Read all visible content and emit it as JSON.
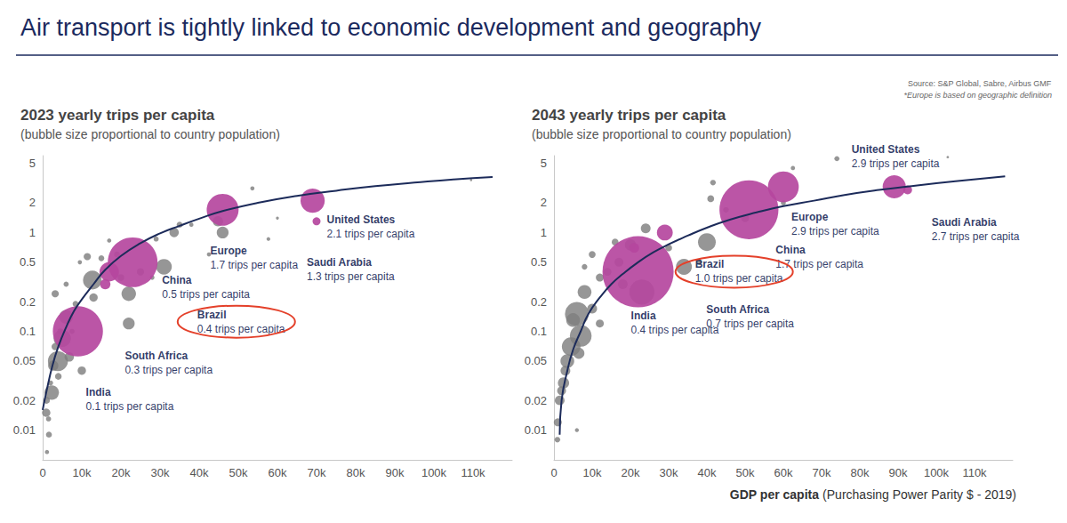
{
  "title": "Air transport is tightly linked to economic development and geography",
  "source": "Source: S&P Global, Sabre, Airbus GMF",
  "note": "*Europe is based on geographic definition",
  "chart_data": [
    {
      "type": "scatter",
      "title": "2023 yearly trips per capita",
      "subtitle": "(bubble size proportional to country population)",
      "log": "y",
      "grid": false,
      "xlim": [
        0,
        120000
      ],
      "xticks": [
        0,
        {
          "value": 10000,
          "label": "10k"
        },
        {
          "value": 20000,
          "label": "20k"
        },
        {
          "value": 30000,
          "label": "30k"
        },
        {
          "value": 40000,
          "label": "40k"
        },
        {
          "value": 50000,
          "label": "50k"
        },
        {
          "value": 60000,
          "label": "60k"
        },
        {
          "value": 70000,
          "label": "70k"
        },
        {
          "value": 80000,
          "label": "80k"
        },
        {
          "value": 90000,
          "label": "90k"
        },
        {
          "value": 100000,
          "label": "100k"
        },
        {
          "value": 110000,
          "label": "110k"
        }
      ],
      "ylim": [
        0.005,
        6
      ],
      "yticks": [
        0.01,
        0.02,
        0.05,
        0.1,
        0.2,
        0.5,
        1,
        2,
        5
      ],
      "annotations": [
        {
          "shape": "ellipse",
          "target": "Brazil",
          "color": "#e4402a"
        }
      ],
      "series": [
        {
          "type": "scatter",
          "marker": "circle",
          "color": "#7f7f7f",
          "x": [
            53600,
            33600,
            35000,
            44800,
            46000,
            57700,
            31000,
            29000,
            11400,
            22000,
            17000,
            15000,
            9500,
            6000,
            3200,
            22000,
            3900,
            2700,
            900,
            1600,
            1100,
            2300,
            5000,
            3200,
            6000,
            8400,
            6800,
            12700,
            109500,
            42500,
            1500,
            2000,
            4500,
            7500,
            10000,
            13000,
            20000,
            25000,
            60000,
            38000,
            1000,
            4000,
            19000,
            28000
          ],
          "values": [
            2.8,
            1.0,
            1.2,
            1.3,
            1.0,
            0.86,
            0.45,
            0.86,
            0.57,
            0.24,
            0.83,
            0.55,
            0.5,
            0.3,
            0.24,
            0.12,
            0.05,
            0.045,
            0.015,
            0.009,
            0.006,
            0.024,
            0.085,
            0.07,
            0.14,
            0.19,
            0.055,
            0.33,
            3.4,
            0.6,
            0.013,
            0.03,
            0.1,
            0.1,
            0.04,
            0.22,
            0.35,
            0.4,
            1.4,
            1.2,
            0.02,
            0.035,
            0.6,
            0.35
          ],
          "sizes": [
            10,
            50,
            20,
            60,
            80,
            8,
            140,
            15,
            30,
            120,
            10,
            20,
            10,
            15,
            30,
            80,
            230,
            60,
            40,
            20,
            10,
            120,
            170,
            30,
            110,
            20,
            50,
            200,
            3,
            10,
            15,
            15,
            20,
            15,
            40,
            40,
            25,
            30,
            5,
            10,
            25,
            25,
            20,
            12
          ]
        },
        {
          "type": "scatter",
          "marker": "circle",
          "color": "#b5469e",
          "data_labels": true,
          "labels": [
            "India",
            "China",
            "Europe",
            "United States",
            "Brazil",
            "South Africa",
            "Saudi Arabia"
          ],
          "x": [
            9000,
            23000,
            46000,
            69000,
            17000,
            16000,
            70000
          ],
          "values": [
            0.1,
            0.5,
            1.7,
            2.1,
            0.4,
            0.3,
            1.3
          ],
          "value_labels": [
            "0.1 trips per capita",
            "0.5 trips per capita",
            "1.7 trips per capita",
            "2.1 trips per capita",
            "0.4 trips per capita",
            "0.3 trips per capita",
            "1.3 trips per capita"
          ],
          "sizes": [
            1430,
            1410,
            580,
            335,
            216,
            60,
            36
          ]
        },
        {
          "type": "line",
          "marker": "none",
          "line_style": "solid",
          "color": "#1c2b5a",
          "x": [
            0,
            1000,
            2500,
            4000,
            6000,
            8000,
            10000,
            13000,
            16000,
            20000,
            25000,
            30000,
            35000,
            40000,
            46000,
            55000,
            65000,
            75000,
            85000,
            95000,
            105000,
            115000
          ],
          "values": [
            0.016,
            0.025,
            0.045,
            0.07,
            0.11,
            0.16,
            0.21,
            0.3,
            0.42,
            0.58,
            0.78,
            0.98,
            1.17,
            1.38,
            1.65,
            2.0,
            2.35,
            2.65,
            2.95,
            3.2,
            3.45,
            3.65
          ]
        }
      ]
    },
    {
      "type": "scatter",
      "title": "2043 yearly trips per capita",
      "subtitle": "(bubble size proportional to country population)",
      "x_label": "GDP per capita (Purchasing Power Parity $ - 2019)",
      "log": "y",
      "grid": false,
      "xlim": [
        0,
        120000
      ],
      "xticks": [
        0,
        {
          "value": 10000,
          "label": "10k"
        },
        {
          "value": 20000,
          "label": "20k"
        },
        {
          "value": 30000,
          "label": "30k"
        },
        {
          "value": 40000,
          "label": "40k"
        },
        {
          "value": 50000,
          "label": "50k"
        },
        {
          "value": 60000,
          "label": "60k"
        },
        {
          "value": 70000,
          "label": "70k"
        },
        {
          "value": 80000,
          "label": "80k"
        },
        {
          "value": 90000,
          "label": "90k"
        },
        {
          "value": 100000,
          "label": "100k"
        },
        {
          "value": 110000,
          "label": "110k"
        }
      ],
      "ylim": [
        0.005,
        6
      ],
      "yticks": [
        0.01,
        0.02,
        0.05,
        0.1,
        0.2,
        0.5,
        1,
        2,
        5
      ],
      "annotations": [
        {
          "shape": "ellipse",
          "target": "Brazil",
          "color": "#e4402a"
        }
      ],
      "series": [
        {
          "type": "scatter",
          "marker": "circle",
          "color": "#7f7f7f",
          "x": [
            74000,
            103000,
            62500,
            41600,
            41000,
            50000,
            24000,
            40000,
            20000,
            16000,
            17000,
            10000,
            12000,
            34000,
            38000,
            23000,
            8000,
            6000,
            7000,
            4500,
            5000,
            3500,
            2500,
            1500,
            1000,
            900,
            6000,
            10000,
            14000,
            18000,
            60000,
            30000,
            3000,
            2000,
            8000,
            12000,
            45000,
            6500
          ],
          "values": [
            5.6,
            5.8,
            4.5,
            3.2,
            2.2,
            1.4,
            1.1,
            0.8,
            0.75,
            0.8,
            0.5,
            0.6,
            0.35,
            0.45,
            0.5,
            0.25,
            0.25,
            0.15,
            0.09,
            0.07,
            0.13,
            0.05,
            0.03,
            0.02,
            0.012,
            0.008,
            0.01,
            0.17,
            0.4,
            0.3,
            2.0,
            0.7,
            0.04,
            0.025,
            0.45,
            0.12,
            1.7,
            0.06
          ],
          "sizes": [
            8,
            2,
            6,
            10,
            15,
            20,
            30,
            100,
            40,
            15,
            25,
            15,
            20,
            80,
            10,
            200,
            60,
            180,
            150,
            110,
            60,
            60,
            40,
            30,
            20,
            10,
            5,
            30,
            20,
            30,
            8,
            15,
            30,
            25,
            10,
            20,
            10,
            40
          ]
        },
        {
          "type": "scatter",
          "marker": "circle",
          "color": "#b5469e",
          "data_labels": true,
          "labels": [
            "India",
            "China",
            "Europe",
            "United States",
            "Brazil",
            "South Africa",
            "Saudi Arabia"
          ],
          "x": [
            22000,
            51000,
            60000,
            89000,
            29000,
            21000,
            92500
          ],
          "values": [
            0.4,
            1.7,
            2.9,
            2.9,
            1.0,
            0.7,
            2.7
          ],
          "value_labels": [
            "0.4 trips per capita",
            "1.7 trips per capita",
            "2.9 trips per capita",
            "2.9 trips per capita",
            "1.0 trips per capita",
            "0.7 trips per capita",
            "2.7 trips per capita"
          ],
          "sizes": [
            1600,
            1100,
            300,
            170,
            80,
            30,
            25
          ]
        },
        {
          "type": "line",
          "marker": "none",
          "line_style": "solid",
          "color": "#1c2b5a",
          "x": [
            1500,
            2000,
            3500,
            5000,
            7000,
            9000,
            12000,
            15000,
            18000,
            22000,
            26000,
            30000,
            35000,
            40000,
            46000,
            53000,
            60000,
            68000,
            76000,
            85000,
            95000,
            105000,
            118000
          ],
          "values": [
            0.009,
            0.02,
            0.04,
            0.065,
            0.1,
            0.15,
            0.22,
            0.3,
            0.38,
            0.5,
            0.63,
            0.76,
            0.93,
            1.12,
            1.35,
            1.6,
            1.85,
            2.1,
            2.4,
            2.7,
            3.0,
            3.3,
            3.7
          ]
        }
      ]
    }
  ]
}
